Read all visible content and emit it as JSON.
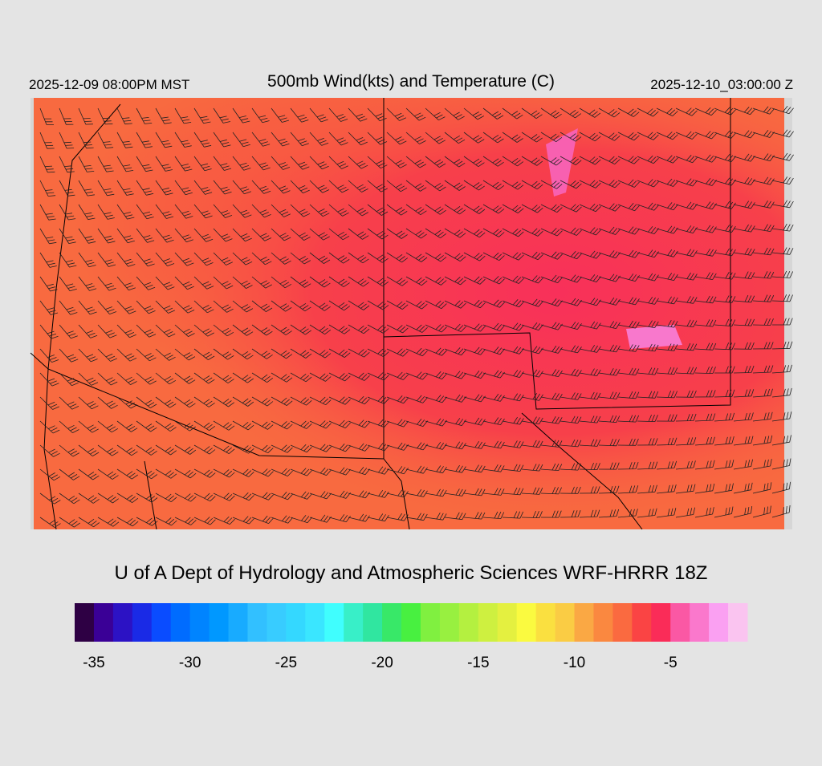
{
  "header": {
    "title": "500mb Wind(kts) and Temperature (C)",
    "local_time": "2025-12-09 08:00PM MST",
    "valid_time": "2025-12-10_03:00:00 Z"
  },
  "footer": "U of A Dept of Hydrology and Atmospheric Sciences WRF-HRRR 18Z",
  "colorbar": {
    "lim": [
      -36,
      -1
    ],
    "ticks": [
      -35,
      -30,
      -25,
      -20,
      -15,
      -10,
      -5
    ],
    "colors": [
      "#2e0044",
      "#3a0096",
      "#2c12c4",
      "#1a2ae6",
      "#0a4cff",
      "#006cff",
      "#0084ff",
      "#0098ff",
      "#18abff",
      "#32c0ff",
      "#38ccff",
      "#34d8ff",
      "#3ae6ff",
      "#40fefe",
      "#38efc8",
      "#30e6a0",
      "#38e868",
      "#48f040",
      "#80f040",
      "#98f040",
      "#b4f040",
      "#cef040",
      "#e4f040",
      "#fafa40",
      "#fae040",
      "#facc44",
      "#faa844",
      "#fa8840",
      "#fa6a40",
      "#fa4444",
      "#fa2c58",
      "#fa58a4",
      "#fa78cc",
      "#faa0f2",
      "#fac4f0"
    ]
  }
}
